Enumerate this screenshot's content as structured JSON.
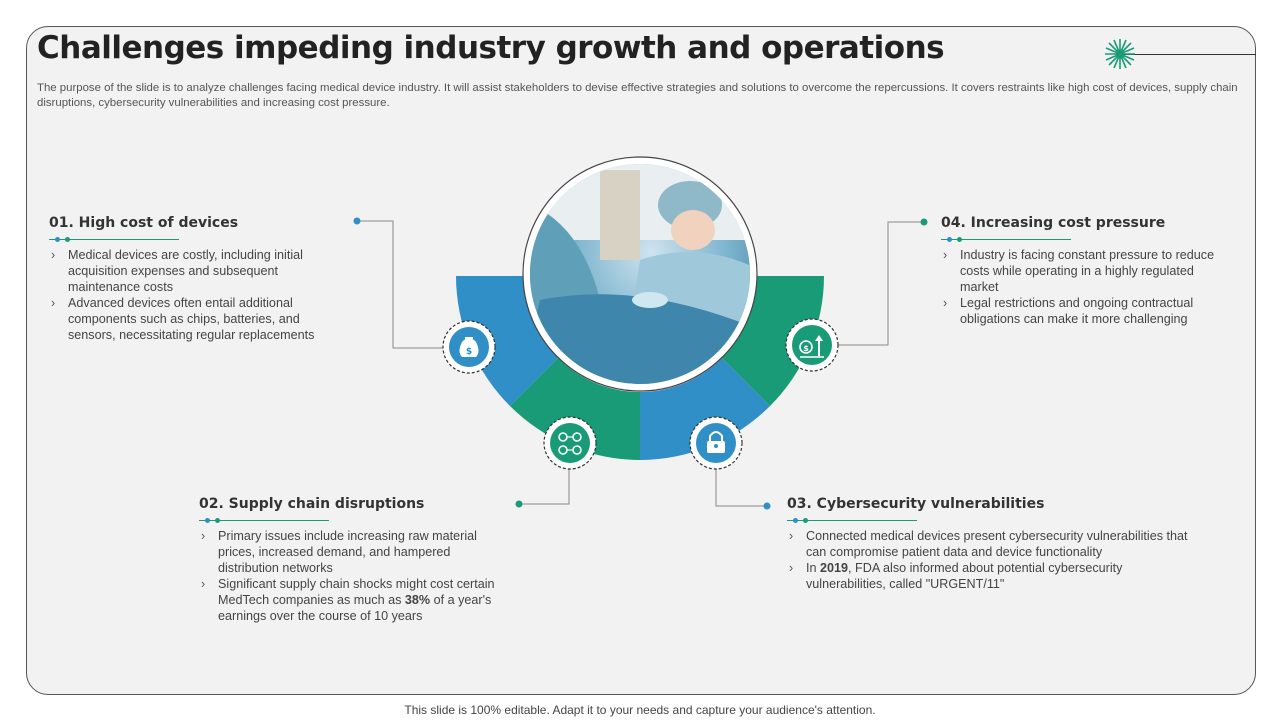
{
  "slide": {
    "title": "Challenges impeding industry growth and operations",
    "intro": "The purpose of the slide is to analyze challenges facing medical device industry. It will assist stakeholders to devise effective strategies and solutions to overcome the repercussions. It covers restraints like high cost of devices, supply chain disruptions, cybersecurity vulnerabilities and increasing cost pressure."
  },
  "challenges": [
    {
      "title": "01. High cost of devices",
      "icon": "money-bag-icon",
      "color": "#2f8fc6",
      "bullets": [
        "Medical devices are costly, including initial acquisition expenses and subsequent maintenance costs",
        "Advanced devices often entail additional components such as chips, batteries, and sensors, necessitating regular replacements"
      ]
    },
    {
      "title": "02. Supply chain disruptions",
      "icon": "supply-network-icon",
      "color": "#1a9b77",
      "bullets": [
        "Primary issues include increasing raw material prices, increased demand, and hampered distribution networks"
      ],
      "bullet2": {
        "pre": "Significant supply chain shocks might cost certain MedTech companies as much as ",
        "bold": "38%",
        "post": " of a year's earnings over the course of 10 years"
      }
    },
    {
      "title": "03. Cybersecurity vulnerabilities",
      "icon": "lock-icon",
      "color": "#2f8fc6",
      "bullets": [
        "Connected medical devices present cybersecurity vulnerabilities that can compromise patient data and device functionality"
      ],
      "bullet2": {
        "pre": "In ",
        "bold": "2019",
        "post": ", FDA also informed about potential cybersecurity vulnerabilities, called \"URGENT/11\""
      }
    },
    {
      "title": "04. Increasing cost pressure",
      "icon": "rising-cost-icon",
      "color": "#1a9b77",
      "bullets": [
        "Industry is facing constant pressure to reduce costs while operating in a highly regulated market",
        "Legal restrictions and ongoing contractual obligations can make it more challenging"
      ]
    }
  ],
  "colors": {
    "accent_blue": "#2f8fc6",
    "accent_green": "#1a9b77",
    "frame_bg": "#f2f2f2"
  },
  "footer": "This slide is 100% editable. Adapt it to your needs and capture your audience's attention."
}
